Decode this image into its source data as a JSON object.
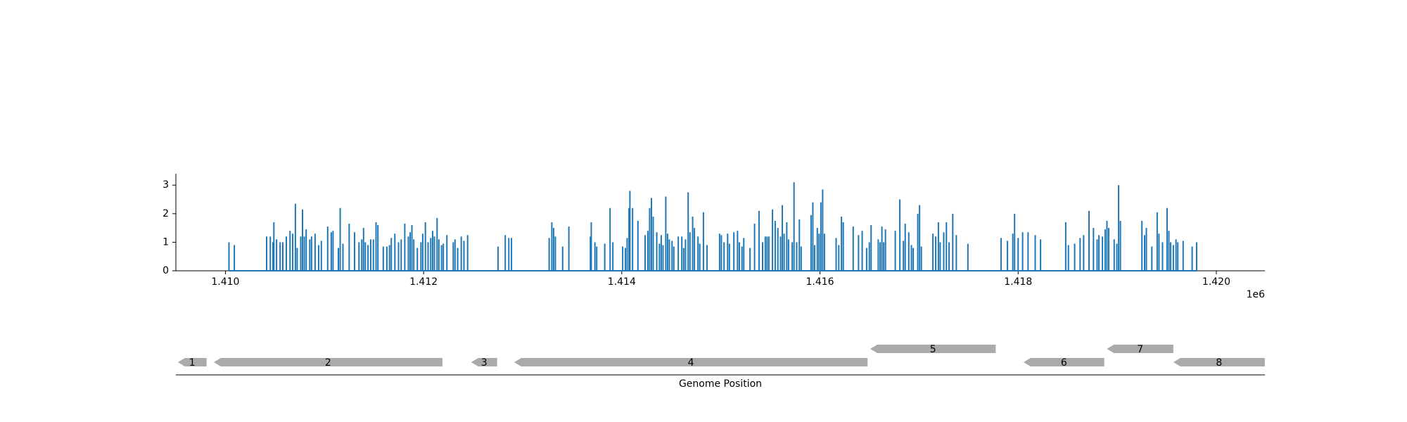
{
  "chart_data": [
    {
      "type": "spike",
      "color": "#1f77b4",
      "x": [
        1410036,
        1410090,
        1410416,
        1410453,
        1410480,
        1410489,
        1410516,
        1410552,
        1410579,
        1410615,
        1410652,
        1410679,
        1410706,
        1410724,
        1410760,
        1410778,
        1410796,
        1410815,
        1410851,
        1410869,
        1410905,
        1410941,
        1410968,
        1411032,
        1411068,
        1411086,
        1411140,
        1411158,
        1411186,
        1411249,
        1411303,
        1411348,
        1411376,
        1411394,
        1411412,
        1411439,
        1411466,
        1411493,
        1411520,
        1411539,
        1411593,
        1411629,
        1411656,
        1411674,
        1411710,
        1411747,
        1411774,
        1411810,
        1411846,
        1411864,
        1411882,
        1411901,
        1411937,
        1411973,
        1411991,
        1412018,
        1412045,
        1412072,
        1412091,
        1412109,
        1412136,
        1412154,
        1412181,
        1412199,
        1412235,
        1412299,
        1412317,
        1412344,
        1412380,
        1412407,
        1412444,
        1412751,
        1412824,
        1412860,
        1412887,
        1413267,
        1413294,
        1413312,
        1413330,
        1413403,
        1413466,
        1413683,
        1413692,
        1413729,
        1413747,
        1413828,
        1413882,
        1413910,
        1414009,
        1414036,
        1414054,
        1414073,
        1414082,
        1414109,
        1414163,
        1414235,
        1414263,
        1414281,
        1414299,
        1414317,
        1414353,
        1414380,
        1414398,
        1414416,
        1414444,
        1414462,
        1414480,
        1414507,
        1414525,
        1414570,
        1414606,
        1414625,
        1414643,
        1414670,
        1414688,
        1414715,
        1414733,
        1414769,
        1414787,
        1414824,
        1414860,
        1414987,
        1415005,
        1415032,
        1415068,
        1415086,
        1415131,
        1415168,
        1415186,
        1415213,
        1415231,
        1415294,
        1415340,
        1415385,
        1415421,
        1415448,
        1415466,
        1415484,
        1415521,
        1415548,
        1415575,
        1415602,
        1415620,
        1415638,
        1415665,
        1415683,
        1415720,
        1415738,
        1415765,
        1415792,
        1415810,
        1415910,
        1415928,
        1415946,
        1415973,
        1415991,
        1416009,
        1416027,
        1416045,
        1416163,
        1416190,
        1416217,
        1416235,
        1416335,
        1416389,
        1416426,
        1416471,
        1416498,
        1416516,
        1416588,
        1416607,
        1416625,
        1416643,
        1416661,
        1416760,
        1416806,
        1416842,
        1416860,
        1416896,
        1416923,
        1416941,
        1416987,
        1417005,
        1417023,
        1417140,
        1417168,
        1417195,
        1417213,
        1417249,
        1417276,
        1417303,
        1417340,
        1417376,
        1417493,
        1417828,
        1417892,
        1417946,
        1417964,
        1418000,
        1418045,
        1418100,
        1418172,
        1418226,
        1418480,
        1418507,
        1418570,
        1418625,
        1418661,
        1418715,
        1418760,
        1418797,
        1418815,
        1418851,
        1418878,
        1418896,
        1418914,
        1418969,
        1418996,
        1419014,
        1419032,
        1419249,
        1419276,
        1419294,
        1419349,
        1419403,
        1419421,
        1419457,
        1419503,
        1419521,
        1419539,
        1419566,
        1419593,
        1419611,
        1419665,
        1419756,
        1419801
      ],
      "values": [
        1.0,
        0.9,
        1.2,
        1.2,
        1.0,
        1.7,
        1.1,
        1.0,
        1.0,
        1.2,
        1.4,
        1.3,
        2.35,
        0.8,
        1.2,
        2.15,
        1.2,
        1.45,
        1.1,
        1.2,
        1.3,
        0.9,
        1.05,
        1.55,
        1.35,
        1.4,
        0.8,
        2.2,
        0.95,
        1.65,
        1.35,
        1.0,
        1.1,
        1.5,
        1.0,
        0.9,
        1.1,
        1.1,
        1.7,
        1.6,
        0.85,
        0.85,
        0.9,
        1.15,
        1.3,
        1.0,
        1.1,
        1.65,
        1.2,
        1.35,
        1.6,
        1.1,
        0.8,
        1.0,
        1.3,
        1.7,
        1.0,
        1.15,
        1.4,
        1.2,
        1.85,
        1.1,
        0.9,
        0.95,
        1.25,
        1.0,
        1.1,
        0.8,
        1.2,
        1.05,
        1.25,
        0.85,
        1.25,
        1.15,
        1.15,
        1.15,
        1.7,
        1.5,
        1.2,
        0.85,
        1.55,
        1.2,
        1.7,
        1.0,
        0.85,
        0.95,
        2.2,
        1.0,
        0.85,
        0.8,
        1.15,
        2.2,
        2.8,
        2.2,
        1.75,
        1.25,
        1.4,
        2.2,
        2.55,
        1.9,
        1.35,
        0.95,
        1.25,
        0.9,
        2.6,
        1.3,
        1.1,
        1.05,
        0.85,
        1.2,
        1.2,
        0.8,
        1.1,
        2.75,
        1.35,
        1.9,
        1.5,
        1.2,
        0.95,
        2.05,
        0.9,
        1.3,
        1.25,
        1.0,
        1.3,
        0.95,
        1.35,
        1.4,
        1.0,
        0.85,
        1.15,
        0.8,
        1.65,
        2.1,
        1.0,
        1.2,
        1.2,
        1.2,
        2.15,
        1.75,
        1.5,
        1.2,
        2.3,
        1.3,
        1.7,
        1.1,
        1.0,
        3.1,
        1.0,
        1.8,
        0.85,
        1.95,
        2.4,
        0.9,
        1.5,
        1.3,
        2.4,
        2.85,
        1.3,
        1.15,
        0.9,
        1.9,
        1.7,
        1.55,
        1.25,
        1.4,
        0.8,
        1.0,
        1.6,
        1.1,
        1.0,
        1.55,
        1.0,
        1.45,
        1.4,
        2.5,
        1.05,
        1.65,
        1.35,
        0.9,
        0.8,
        2.0,
        2.3,
        0.85,
        1.3,
        1.2,
        1.7,
        1.0,
        1.35,
        1.7,
        1.0,
        2.0,
        1.25,
        0.95,
        1.15,
        1.05,
        1.3,
        2.0,
        1.15,
        1.35,
        1.35,
        1.25,
        1.1,
        1.7,
        0.9,
        0.95,
        1.15,
        1.25,
        2.1,
        1.5,
        1.1,
        1.25,
        1.2,
        1.45,
        1.75,
        1.5,
        1.1,
        0.95,
        3.0,
        1.75,
        1.75,
        1.25,
        1.5,
        0.85,
        2.05,
        1.3,
        1.0,
        2.2,
        1.4,
        1.0,
        0.9,
        1.1,
        1.0,
        1.05,
        0.85,
        1.0
      ],
      "xlim": [
        1409500,
        1420490
      ],
      "xticks": [
        {
          "value": 1410000,
          "label": "1.410"
        },
        {
          "value": 1412000,
          "label": "1.412"
        },
        {
          "value": 1414000,
          "label": "1.414"
        },
        {
          "value": 1416000,
          "label": "1.416"
        },
        {
          "value": 1418000,
          "label": "1.418"
        },
        {
          "value": 1420000,
          "label": "1.420"
        }
      ],
      "x_offset_label": "1e6",
      "ylim": [
        0,
        3.4
      ],
      "yticks": [
        0,
        1,
        2,
        3
      ]
    },
    {
      "type": "gene-track",
      "color": "#aaaaaa",
      "xlabel": "Genome Position",
      "xlim": [
        1409500,
        1420490
      ],
      "genes": [
        {
          "label": "1",
          "start": 1409520,
          "end": 1409810,
          "strand": "-",
          "row": 0
        },
        {
          "label": "2",
          "start": 1409882,
          "end": 1412190,
          "strand": "-",
          "row": 0
        },
        {
          "label": "3",
          "start": 1412480,
          "end": 1412742,
          "strand": "-",
          "row": 0
        },
        {
          "label": "4",
          "start": 1412914,
          "end": 1416480,
          "strand": "-",
          "row": 0
        },
        {
          "label": "5",
          "start": 1416507,
          "end": 1417774,
          "strand": "-",
          "row": 1
        },
        {
          "label": "6",
          "start": 1418054,
          "end": 1418869,
          "strand": "-",
          "row": 0
        },
        {
          "label": "7",
          "start": 1418896,
          "end": 1419566,
          "strand": "-",
          "row": 1
        },
        {
          "label": "8",
          "start": 1419566,
          "end": 1420489,
          "strand": "-",
          "row": 0
        }
      ]
    }
  ]
}
